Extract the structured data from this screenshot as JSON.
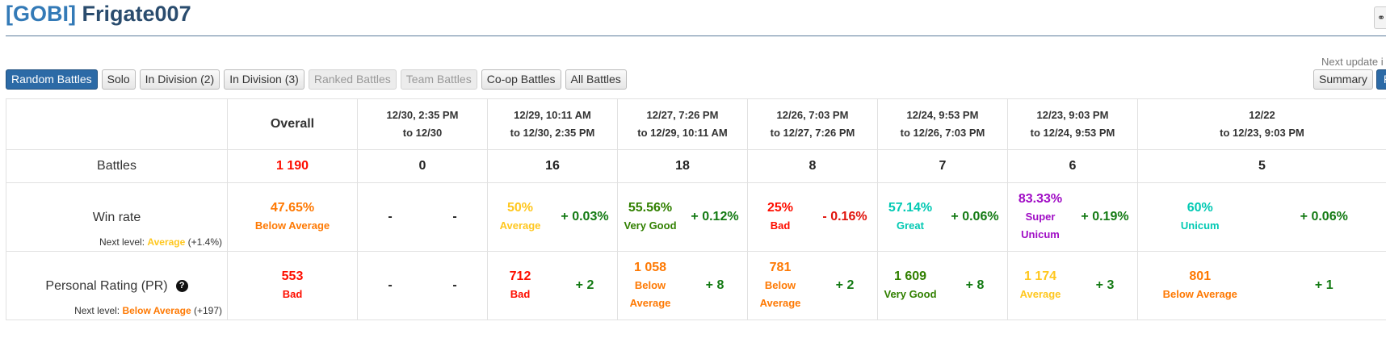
{
  "page": {
    "clan_tag": "[GOBI]",
    "player_name": "Frigate007",
    "next_update_text": "Next update i",
    "corner_icon": "binoculars-icon"
  },
  "filters": [
    {
      "label": "Random Battles",
      "state": "active"
    },
    {
      "label": "Solo",
      "state": "normal"
    },
    {
      "label": "In Division (2)",
      "state": "normal"
    },
    {
      "label": "In Division (3)",
      "state": "normal"
    },
    {
      "label": "Ranked Battles",
      "state": "disabled"
    },
    {
      "label": "Team Battles",
      "state": "disabled"
    },
    {
      "label": "Co-op Battles",
      "state": "normal"
    },
    {
      "label": "All Battles",
      "state": "normal"
    }
  ],
  "right_buttons": {
    "summary": "Summary",
    "partial": "P"
  },
  "colors": {
    "accent": "#2c6aa6",
    "bad": "#fe0e00",
    "below_average": "#fe7903",
    "average": "#ffc71f",
    "good": "#44b300",
    "very_good": "#318000",
    "great": "#02c9b3",
    "unicum": "#02c9b3",
    "super_unicum": "#a00dc5",
    "delta_positive": "#137a13",
    "delta_negative": "#e0120a"
  },
  "table": {
    "columns": [
      {
        "line1": "Overall",
        "line2": ""
      },
      {
        "line1": "12/30, 2:35 PM",
        "line2": "to 12/30"
      },
      {
        "line1": "12/29, 10:11 AM",
        "line2": "to 12/30, 2:35 PM"
      },
      {
        "line1": "12/27, 7:26 PM",
        "line2": "to 12/29, 10:11 AM"
      },
      {
        "line1": "12/26, 7:03 PM",
        "line2": "to 12/27, 7:26 PM"
      },
      {
        "line1": "12/24, 9:53 PM",
        "line2": "to 12/26, 7:03 PM"
      },
      {
        "line1": "12/23, 9:03 PM",
        "line2": "to 12/24, 9:53 PM"
      },
      {
        "line1": "12/22",
        "line2": "to 12/23, 9:03 PM"
      }
    ],
    "battles": {
      "label": "Battles",
      "values": [
        "1 190",
        "0",
        "16",
        "18",
        "8",
        "7",
        "6",
        "5"
      ],
      "colors": [
        "bad",
        "black",
        "black",
        "black",
        "black",
        "black",
        "black",
        "black"
      ]
    },
    "win_rate": {
      "label": "Win rate",
      "next_level_prefix": "Next level:",
      "next_level_name": "Average",
      "next_level_delta": "(+1.4%)",
      "cells": [
        {
          "value": "47.65%",
          "desc": "Below Average",
          "color": "below_average"
        },
        {
          "dash": true,
          "left": "-",
          "right": "-"
        },
        {
          "value": "50%",
          "desc": "Average",
          "color": "average",
          "delta": "+ 0.03%",
          "delta_sign": "pos"
        },
        {
          "value": "55.56%",
          "desc": "Very Good",
          "color": "very_good",
          "delta": "+ 0.12%",
          "delta_sign": "pos"
        },
        {
          "value": "25%",
          "desc": "Bad",
          "color": "bad",
          "delta": "- 0.16%",
          "delta_sign": "neg"
        },
        {
          "value": "57.14%",
          "desc": "Great",
          "color": "great",
          "delta": "+ 0.06%",
          "delta_sign": "pos"
        },
        {
          "value": "83.33%",
          "desc": "Super Unicum",
          "color": "super_unicum",
          "delta": "+ 0.19%",
          "delta_sign": "pos"
        },
        {
          "value": "60%",
          "desc": "Unicum",
          "color": "unicum",
          "delta": "+ 0.06%",
          "delta_sign": "pos"
        }
      ]
    },
    "personal_rating": {
      "label": "Personal Rating (PR)",
      "help_icon": "question-circle-icon",
      "next_level_prefix": "Next level:",
      "next_level_name": "Below Average",
      "next_level_delta": "(+197)",
      "cells": [
        {
          "value": "553",
          "desc": "Bad",
          "color": "bad"
        },
        {
          "dash": true,
          "left": "-",
          "right": "-"
        },
        {
          "value": "712",
          "desc": "Bad",
          "color": "bad",
          "delta": "+ 2",
          "delta_sign": "pos"
        },
        {
          "value": "1 058",
          "desc": "Below Average",
          "color": "below_average",
          "delta": "+ 8",
          "delta_sign": "pos"
        },
        {
          "value": "781",
          "desc": "Below Average",
          "color": "below_average",
          "delta": "+ 2",
          "delta_sign": "pos"
        },
        {
          "value": "1 609",
          "desc": "Very Good",
          "color": "very_good",
          "delta": "+ 8",
          "delta_sign": "pos"
        },
        {
          "value": "1 174",
          "desc": "Average",
          "color": "average",
          "delta": "+ 3",
          "delta_sign": "pos"
        },
        {
          "value": "801",
          "desc": "Below Average",
          "color": "below_average",
          "delta": "+ 1",
          "delta_sign": "pos"
        }
      ]
    }
  }
}
